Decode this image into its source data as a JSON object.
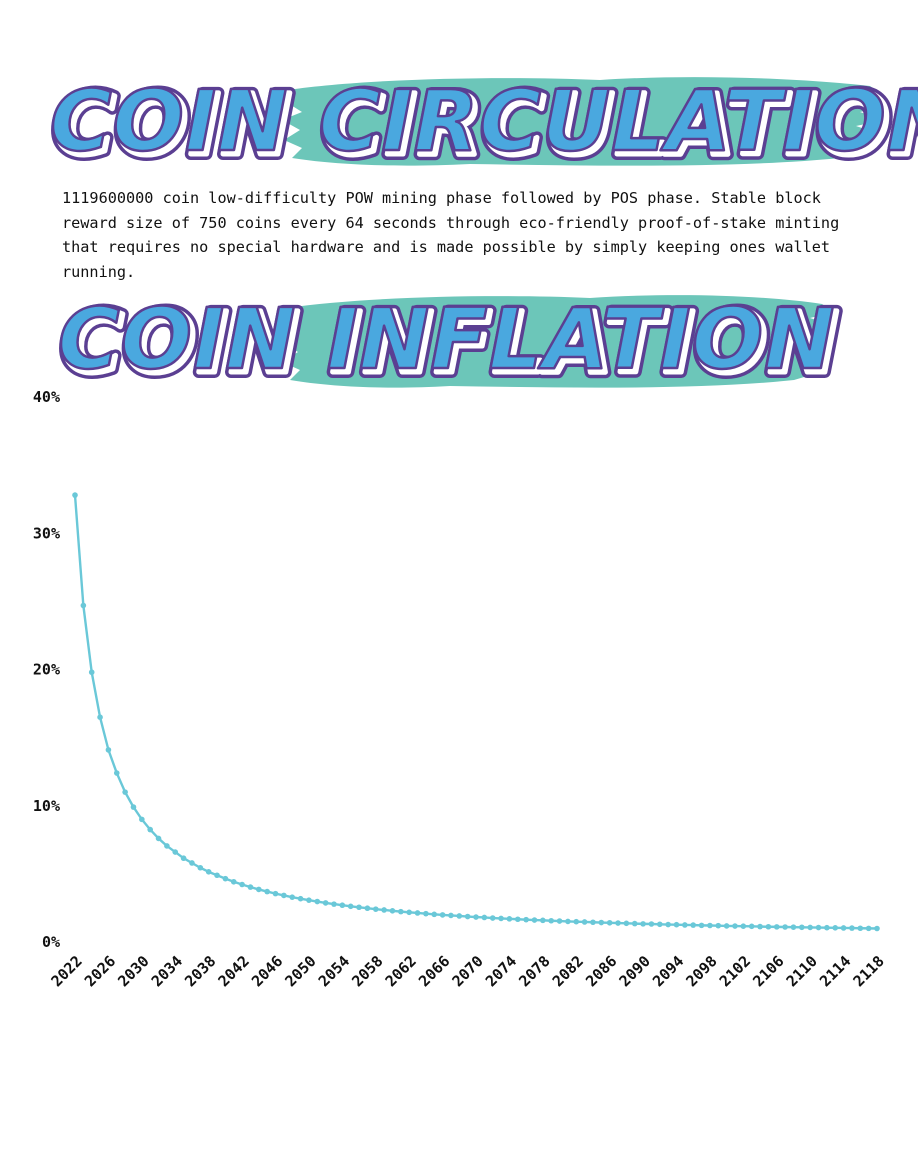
{
  "header": {
    "circulation_title": "COIN CIRCULATION",
    "inflation_title": "COIN INFLATION"
  },
  "description": "1119600000 coin low-difficulty POW mining phase followed by POS phase. Stable block reward size of 750 coins every 64 seconds through eco-friendly proof-of-stake minting that requires no special hardware and is made possible by simply keeping ones wallet running.",
  "colors": {
    "title_fill": "#4aa8df",
    "title_outline": "#5b3f92",
    "title_shadow": "#ffffff",
    "brush": "#6cc6b9",
    "line": "#6ac8d8",
    "text": "#111111"
  },
  "chart_data": {
    "type": "line",
    "title": "",
    "xlabel": "",
    "ylabel": "",
    "ylim": [
      0,
      40
    ],
    "y_ticks": [
      "0%",
      "10%",
      "20%",
      "30%",
      "40%"
    ],
    "y_tick_values": [
      0,
      10,
      20,
      30,
      40
    ],
    "x_ticks": [
      "2022",
      "2026",
      "2030",
      "2034",
      "2038",
      "2042",
      "2046",
      "2050",
      "2054",
      "2058",
      "2062",
      "2066",
      "2070",
      "2074",
      "2078",
      "2082",
      "2086",
      "2090",
      "2094",
      "2098",
      "2102",
      "2106",
      "2110",
      "2114",
      "2118"
    ],
    "grid": false,
    "legend": "none",
    "x": [
      2022,
      2023,
      2024,
      2025,
      2026,
      2027,
      2028,
      2029,
      2030,
      2031,
      2032,
      2033,
      2034,
      2035,
      2036,
      2037,
      2038,
      2039,
      2040,
      2041,
      2042,
      2043,
      2044,
      2045,
      2046,
      2047,
      2048,
      2049,
      2050,
      2051,
      2052,
      2053,
      2054,
      2055,
      2056,
      2057,
      2058,
      2059,
      2060,
      2061,
      2062,
      2063,
      2064,
      2065,
      2066,
      2067,
      2068,
      2069,
      2070,
      2071,
      2072,
      2073,
      2074,
      2075,
      2076,
      2077,
      2078,
      2079,
      2080,
      2081,
      2082,
      2083,
      2084,
      2085,
      2086,
      2087,
      2088,
      2089,
      2090,
      2091,
      2092,
      2093,
      2094,
      2095,
      2096,
      2097,
      2098,
      2099,
      2100,
      2101,
      2102,
      2103,
      2104,
      2105,
      2106,
      2107,
      2108,
      2109,
      2110,
      2111,
      2112,
      2113,
      2114,
      2115,
      2116,
      2117,
      2118
    ],
    "series": [
      {
        "values": [
          32.8,
          24.7,
          19.8,
          16.5,
          14.1,
          12.4,
          11.0,
          9.9,
          9.0,
          8.25,
          7.6,
          7.05,
          6.6,
          6.15,
          5.8,
          5.45,
          5.15,
          4.9,
          4.65,
          4.42,
          4.22,
          4.03,
          3.86,
          3.7,
          3.55,
          3.42,
          3.29,
          3.18,
          3.07,
          2.97,
          2.87,
          2.78,
          2.7,
          2.62,
          2.55,
          2.48,
          2.41,
          2.35,
          2.29,
          2.23,
          2.18,
          2.13,
          2.08,
          2.03,
          1.99,
          1.95,
          1.91,
          1.87,
          1.83,
          1.8,
          1.76,
          1.73,
          1.7,
          1.67,
          1.64,
          1.61,
          1.59,
          1.56,
          1.54,
          1.51,
          1.49,
          1.47,
          1.45,
          1.43,
          1.41,
          1.39,
          1.37,
          1.35,
          1.33,
          1.32,
          1.3,
          1.28,
          1.27,
          1.25,
          1.24,
          1.22,
          1.21,
          1.2,
          1.18,
          1.17,
          1.16,
          1.15,
          1.13,
          1.12,
          1.11,
          1.1,
          1.09,
          1.08,
          1.07,
          1.06,
          1.05,
          1.04,
          1.03,
          1.02,
          1.01,
          1.0,
          0.99
        ]
      }
    ]
  }
}
